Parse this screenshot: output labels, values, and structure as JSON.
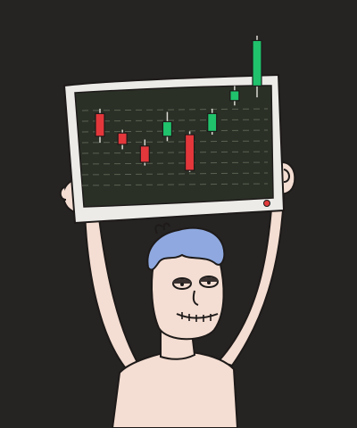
{
  "scene": {
    "subject": "man-holding-monitor",
    "colors": {
      "background": "#262323",
      "skin": "#f4ddd2",
      "outline": "#1d1a19",
      "hair": "#8fa9e0",
      "monitor_frame": "#ecebe8",
      "screen": "#2b3027",
      "grid": "#5b6252",
      "candle_up": "#20c26c",
      "candle_down": "#e3373b",
      "power_led": "#e23b3b"
    }
  },
  "chart_data": {
    "type": "candlestick",
    "grid": true,
    "candles": [
      {
        "open": 52,
        "close": 38,
        "high": 55,
        "low": 34,
        "trend": "down"
      },
      {
        "open": 40,
        "close": 33,
        "high": 42,
        "low": 30,
        "trend": "down"
      },
      {
        "open": 32,
        "close": 22,
        "high": 36,
        "low": 20,
        "trend": "down"
      },
      {
        "open": 38,
        "close": 47,
        "high": 53,
        "low": 35,
        "trend": "up"
      },
      {
        "open": 39,
        "close": 17,
        "high": 41,
        "low": 16,
        "trend": "down"
      },
      {
        "open": 41,
        "close": 52,
        "high": 55,
        "low": 39,
        "trend": "up"
      },
      {
        "open": 60,
        "close": 66,
        "high": 69,
        "low": 57,
        "trend": "up"
      },
      {
        "open": 69,
        "close": 97,
        "high": 100,
        "low": 62,
        "trend": "up"
      }
    ]
  }
}
